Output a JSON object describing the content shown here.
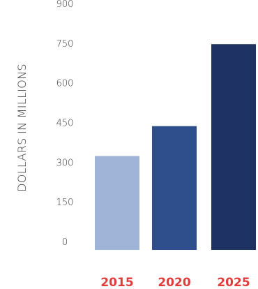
{
  "chart_data": {
    "type": "bar",
    "title": "",
    "xlabel": "",
    "ylabel": "DOLLARS IN MILLIONS",
    "categories": [
      "2015",
      "2020",
      "2025"
    ],
    "values": [
      355,
      468,
      778
    ],
    "ylim": [
      0,
      900
    ],
    "yticks": [
      0,
      150,
      300,
      450,
      600,
      750,
      900
    ],
    "grid": false,
    "legend": "none",
    "bar_colors": [
      "#9fb4d6",
      "#2f4e8c",
      "#1f3264"
    ],
    "category_label_color": "#e33a3a",
    "tick_label_color": "#333333"
  }
}
